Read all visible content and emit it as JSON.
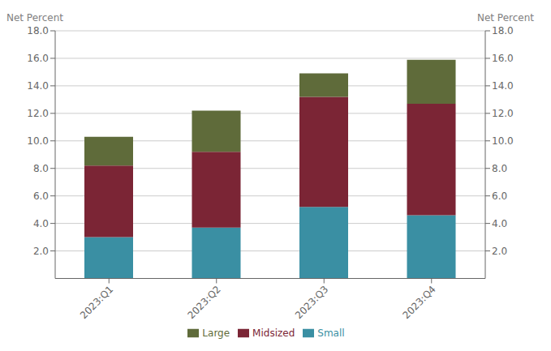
{
  "chart_data": {
    "type": "bar",
    "stacked": true,
    "grid": true,
    "legend": "bottom",
    "categories": [
      "2023:Q1",
      "2023:Q2",
      "2023:Q3",
      "2023:Q4"
    ],
    "series": [
      {
        "name": "Small",
        "color": "#3a8fa3",
        "values": [
          3.0,
          3.7,
          5.2,
          4.6
        ]
      },
      {
        "name": "Midsized",
        "color": "#7b2535",
        "values": [
          5.2,
          5.5,
          8.0,
          8.1
        ]
      },
      {
        "name": "Large",
        "color": "#5f6b3a",
        "values": [
          2.1,
          3.0,
          1.7,
          3.2
        ]
      }
    ],
    "ylabel": "Net Percent",
    "y2label": "Net Percent",
    "ylim": [
      0,
      18.0
    ],
    "yticks": [
      {
        "value": 2.0,
        "label": "2.0"
      },
      {
        "value": 4.0,
        "label": "4.0"
      },
      {
        "value": 6.0,
        "label": "6.0"
      },
      {
        "value": 8.0,
        "label": "8.0"
      },
      {
        "value": 10.0,
        "label": "10.0"
      },
      {
        "value": 12.0,
        "label": "12.0"
      },
      {
        "value": 14.0,
        "label": "14.0"
      },
      {
        "value": 16.0,
        "label": "16.0"
      },
      {
        "value": 18.0,
        "label": "18.0"
      }
    ],
    "y2lim": [
      0,
      18.0
    ],
    "y2ticks": [
      {
        "value": 2.0,
        "label": "2.0"
      },
      {
        "value": 4.0,
        "label": "4.0"
      },
      {
        "value": 6.0,
        "label": "6.0"
      },
      {
        "value": 8.0,
        "label": "8.0"
      },
      {
        "value": 10.0,
        "label": "10.0"
      },
      {
        "value": 12.0,
        "label": "12.0"
      },
      {
        "value": 14.0,
        "label": "14.0"
      },
      {
        "value": 16.0,
        "label": "16.0"
      },
      {
        "value": 18.0,
        "label": "18.0"
      }
    ]
  }
}
